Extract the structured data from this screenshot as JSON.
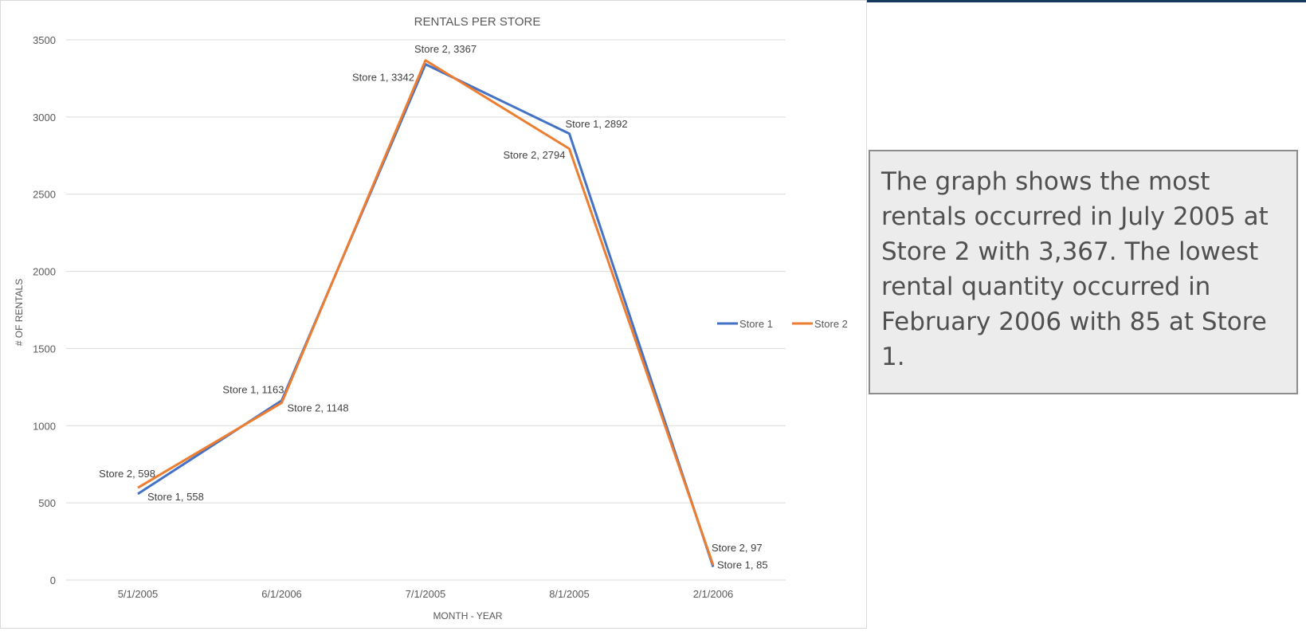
{
  "colors": {
    "store1": "#4472c4",
    "store2": "#ed7d31",
    "gridline": "#d9d9d9",
    "note_background": "#ececec",
    "note_border": "#8c8c8c",
    "top_bar": "#14395a"
  },
  "chart_data": {
    "type": "line",
    "title": "RENTALS PER STORE",
    "xlabel": "MONTH - YEAR",
    "ylabel": "# OF RENTALS",
    "categories": [
      "5/1/2005",
      "6/1/2006",
      "7/1/2005",
      "8/1/2005",
      "2/1/2006"
    ],
    "ylim": [
      0,
      3500
    ],
    "yticks": [
      0,
      500,
      1000,
      1500,
      2000,
      2500,
      3000,
      3500
    ],
    "grid": true,
    "legend_position": "right",
    "series": [
      {
        "name": "Store 1",
        "values": [
          558,
          1163,
          3342,
          2892,
          85
        ],
        "labels": [
          "Store 1, 558",
          "Store 1, 1163",
          "Store 1, 3342",
          "Store 1, 2892",
          "Store 1, 85"
        ]
      },
      {
        "name": "Store 2",
        "values": [
          598,
          1148,
          3367,
          2794,
          97
        ],
        "labels": [
          "Store 2, 598",
          "Store 2, 1148",
          "Store 2, 3367",
          "Store 2, 2794",
          "Store 2, 97"
        ]
      }
    ]
  },
  "note": {
    "text": "The graph shows the most rentals occurred in July 2005 at Store 2 with 3,367. The lowest rental quantity occurred in February 2006 with 85 at Store 1."
  }
}
